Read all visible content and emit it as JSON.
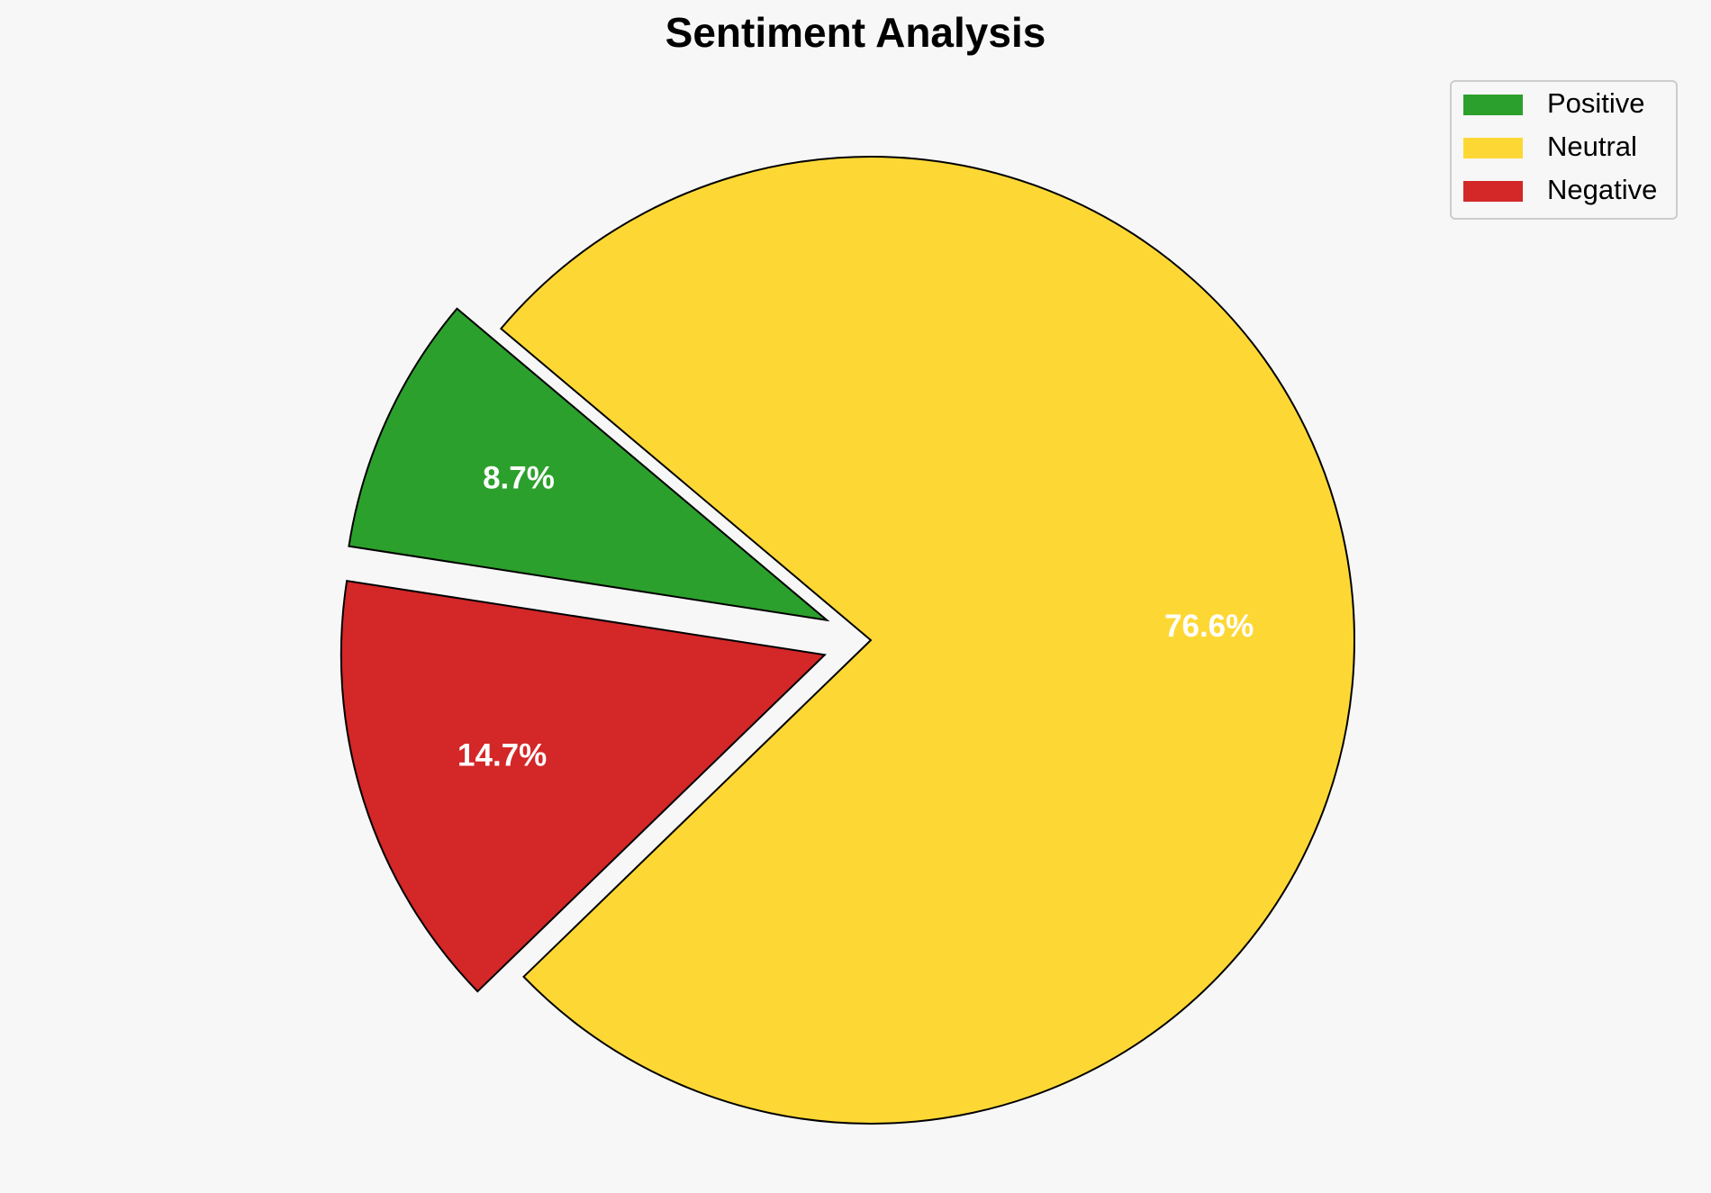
{
  "chart_data": {
    "type": "pie",
    "title": "Sentiment Analysis",
    "categories": [
      "Positive",
      "Neutral",
      "Negative"
    ],
    "values": [
      8.7,
      76.6,
      14.7
    ],
    "value_labels": [
      "8.7%",
      "76.6%",
      "14.7%"
    ],
    "colors": [
      "#2ca02c",
      "#fdd835",
      "#d32728"
    ],
    "legend": "upper right"
  }
}
